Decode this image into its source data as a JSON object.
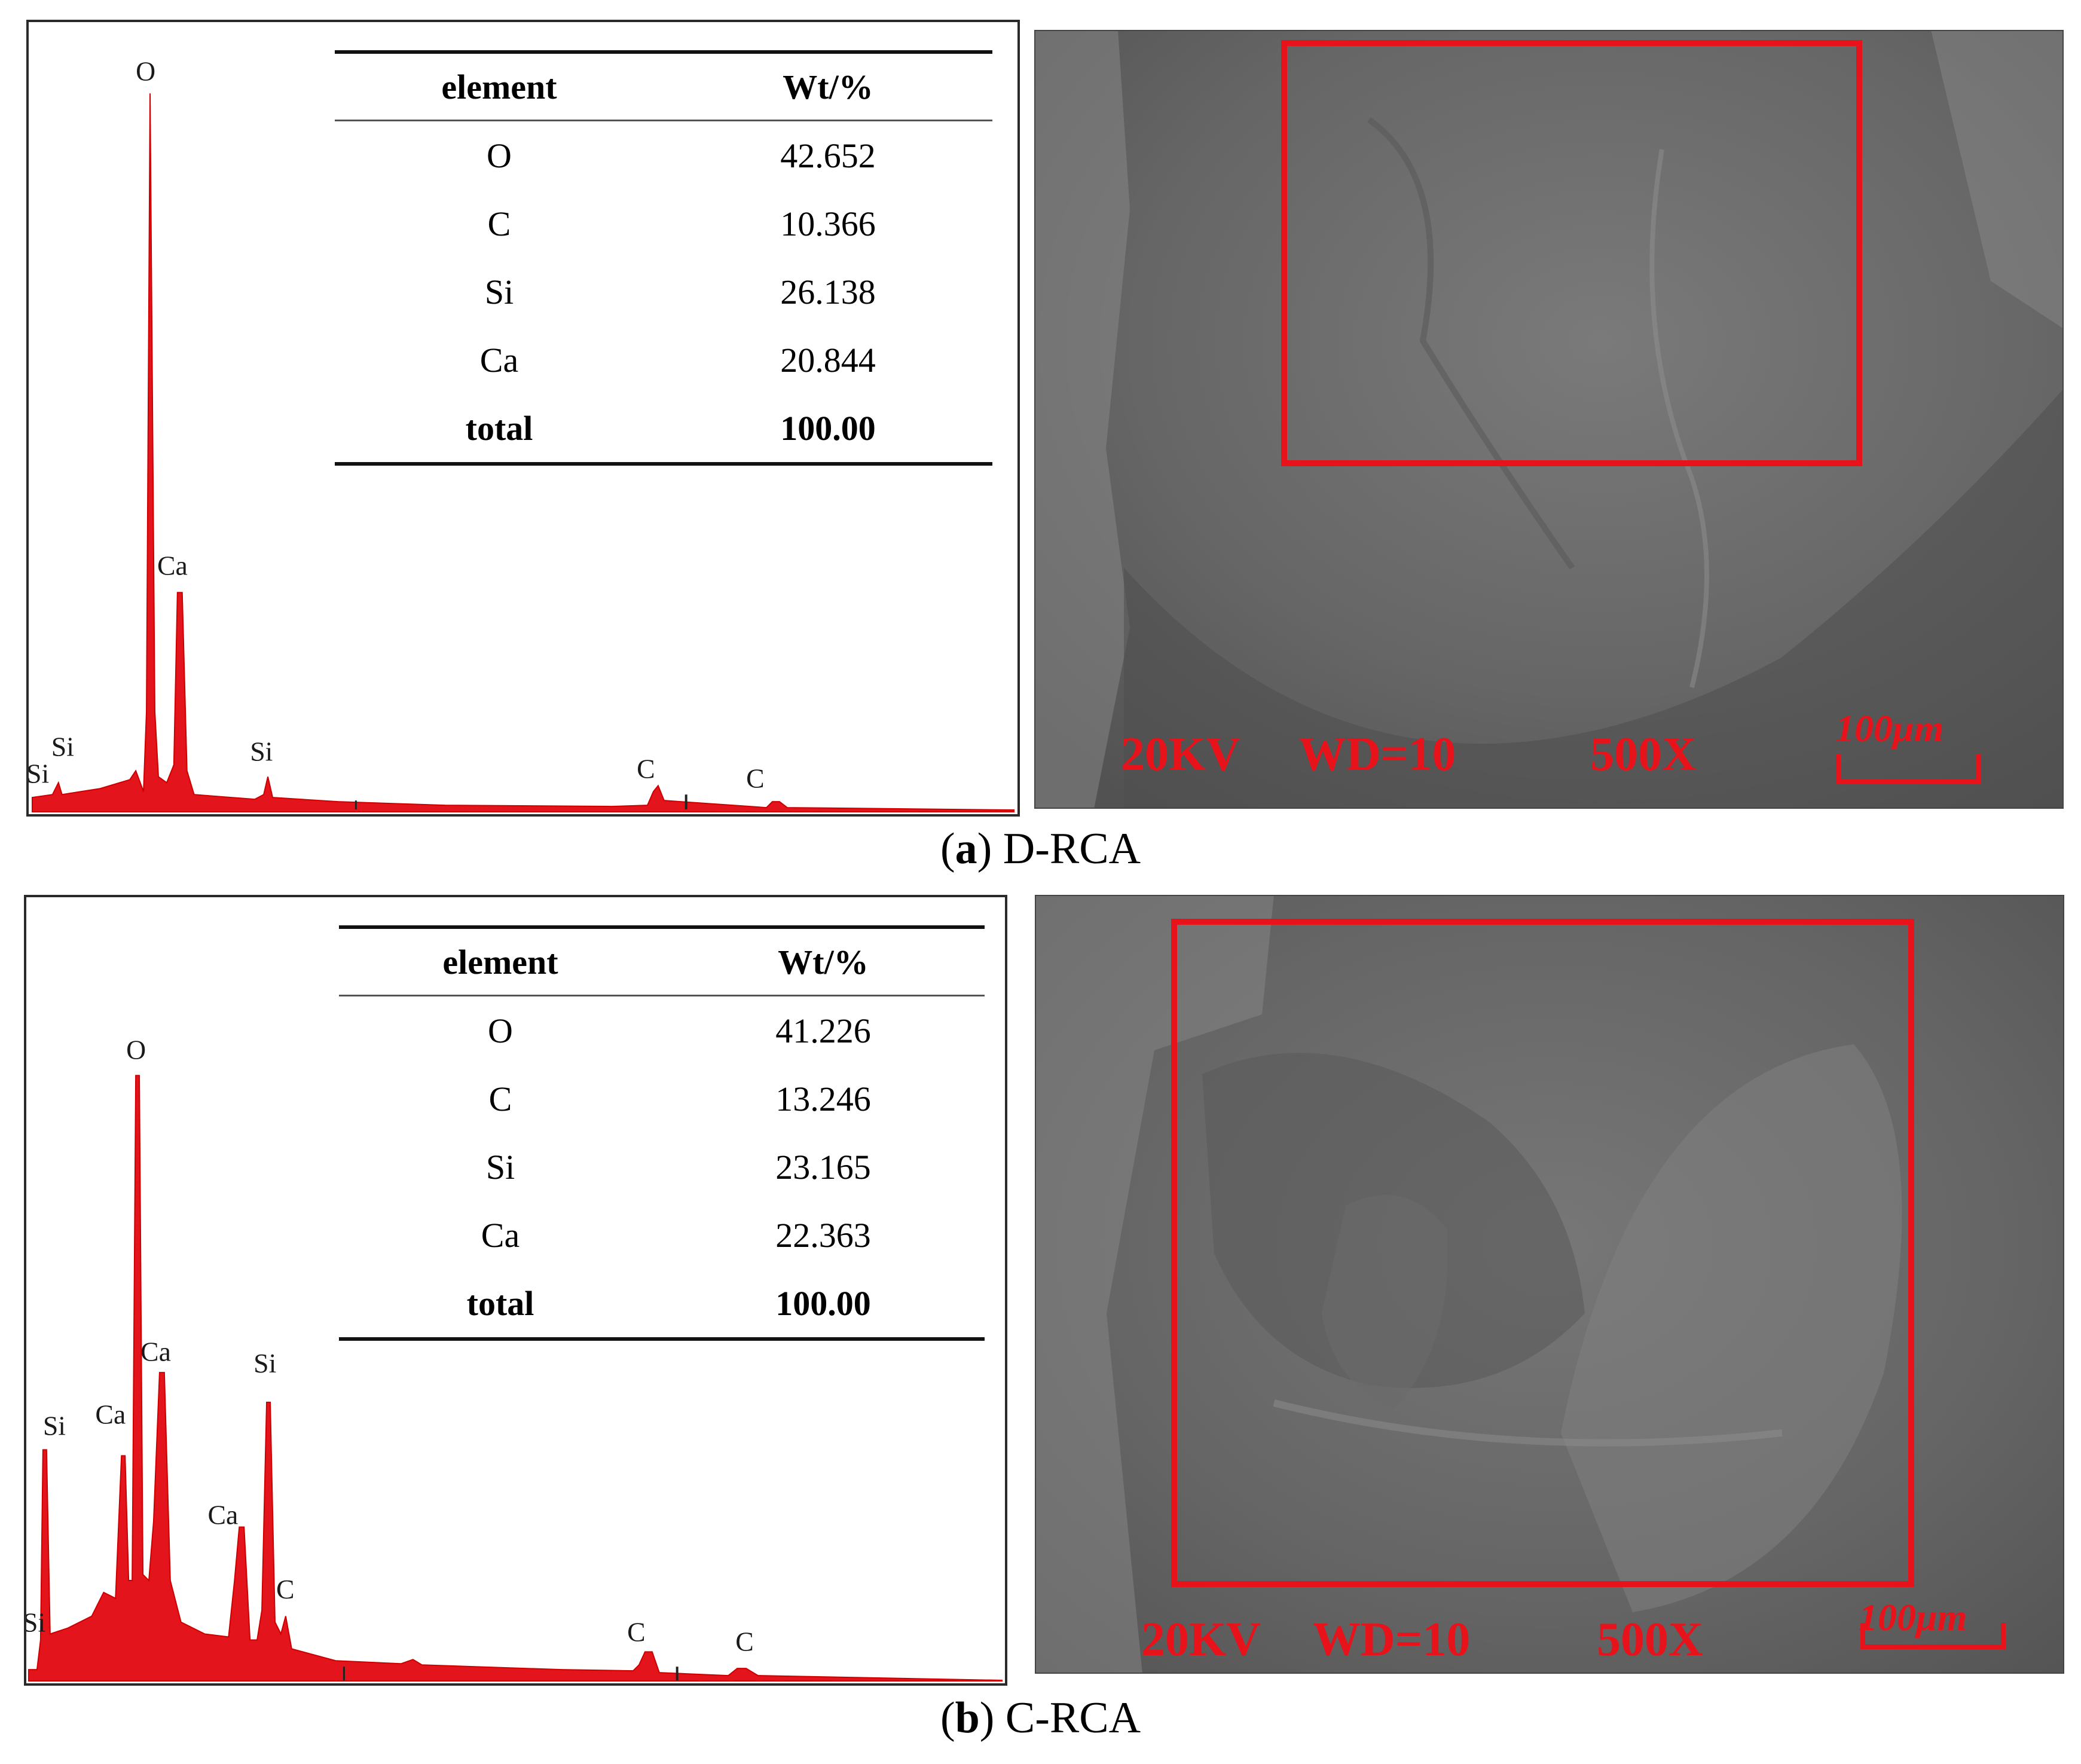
{
  "panels": [
    {
      "id": "a",
      "caption_letter": "a",
      "caption_text": "D-RCA",
      "table": {
        "header": [
          "element",
          "Wt/%"
        ],
        "rows": [
          [
            "O",
            "42.652"
          ],
          [
            "C",
            "10.366"
          ],
          [
            "Si",
            "26.138"
          ],
          [
            "Ca",
            "20.844"
          ]
        ],
        "total": [
          "total",
          "100.00"
        ]
      },
      "peak_labels": [
        "O",
        "Ca",
        "Si",
        "Si",
        "Si",
        "C",
        "C"
      ],
      "sem": {
        "voltage": "20KV",
        "wd": "WD=10",
        "mag": "500X",
        "scale": "100μm"
      }
    },
    {
      "id": "b",
      "caption_letter": "b",
      "caption_text": "C-RCA",
      "table": {
        "header": [
          "element",
          "Wt/%"
        ],
        "rows": [
          [
            "O",
            "41.226"
          ],
          [
            "C",
            "13.246"
          ],
          [
            "Si",
            "23.165"
          ],
          [
            "Ca",
            "22.363"
          ]
        ],
        "total": [
          "total",
          "100.00"
        ]
      },
      "peak_labels": [
        "O",
        "Ca",
        "Si",
        "Ca",
        "Ca",
        "Si",
        "Si",
        "C",
        "C",
        "C"
      ],
      "sem": {
        "voltage": "20KV",
        "wd": "WD=10",
        "mag": "500X",
        "scale": "100μm"
      }
    }
  ],
  "colors": {
    "spectrum_fill": "#e3141b",
    "sem_overlay": "#e8121a",
    "sem_gray": "#6e6e6e"
  }
}
